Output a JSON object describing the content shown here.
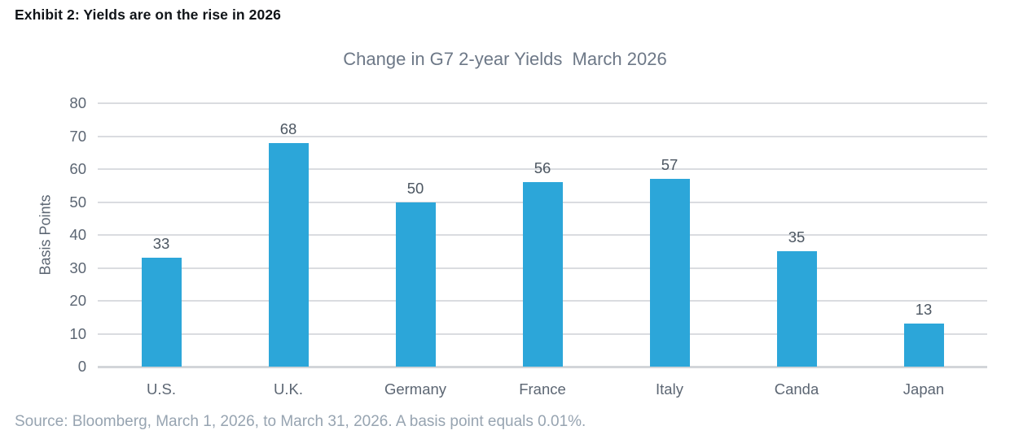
{
  "page": {
    "exhibit_title": "Exhibit 2: Yields are on the rise in 2026",
    "source": "Source: Bloomberg, March 1, 2026, to March 31, 2026. A basis point equals 0.01%."
  },
  "chart_data": {
    "type": "bar",
    "title": "Change in G7 2-year Yields  March 2026",
    "categories": [
      "U.S.",
      "U.K.",
      "Germany",
      "France",
      "Italy",
      "Canda",
      "Japan"
    ],
    "values": [
      33,
      68,
      50,
      56,
      57,
      35,
      13
    ],
    "xlabel": "",
    "ylabel": "Basis Points",
    "ylim": [
      0,
      80
    ],
    "ytick_step": 10,
    "yticks": [
      0,
      10,
      20,
      30,
      40,
      50,
      60,
      70,
      80
    ],
    "value_labels_shown": true,
    "legend": "none",
    "grid": "horizontal",
    "bar_color": "#2ca6d9",
    "gridline_color": "#dadce0",
    "title_color": "#6d7887",
    "axis_text_color": "#5c6673",
    "value_label_color": "#4c5661",
    "source_color": "#97a4b1"
  }
}
